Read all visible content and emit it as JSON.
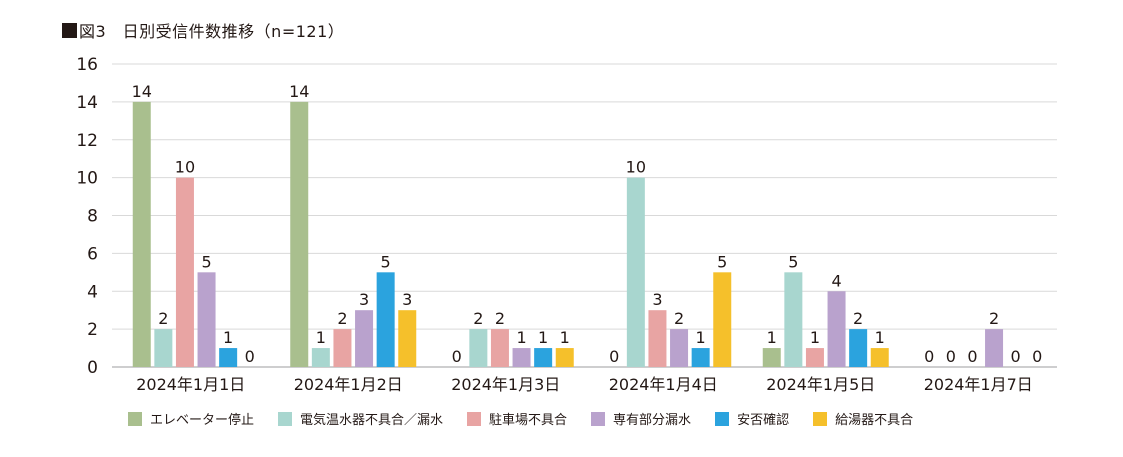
{
  "chart_data": {
    "type": "bar",
    "title_prefix": "■",
    "title": "図3　日別受信件数推移（n=121）",
    "categories": [
      "2024年1月1日",
      "2024年1月2日",
      "2024年1月3日",
      "2024年1月4日",
      "2024年1月5日",
      "2024年1月7日"
    ],
    "series": [
      {
        "name": "エレベーター停止",
        "color": "#a9bf8e",
        "values": [
          14,
          14,
          0,
          0,
          1,
          0
        ]
      },
      {
        "name": "電気温水器不具合／漏水",
        "color": "#a8d6cf",
        "values": [
          2,
          1,
          2,
          10,
          5,
          0
        ]
      },
      {
        "name": "駐車場不具合",
        "color": "#e8a4a3",
        "values": [
          10,
          2,
          2,
          3,
          1,
          0
        ]
      },
      {
        "name": "専有部分漏水",
        "color": "#b9a2cd",
        "values": [
          5,
          3,
          1,
          2,
          4,
          2
        ]
      },
      {
        "name": "安否確認",
        "color": "#2ba3de",
        "values": [
          1,
          5,
          1,
          1,
          2,
          0
        ]
      },
      {
        "name": "給湯器不具合",
        "color": "#f5c02b",
        "values": [
          0,
          3,
          1,
          5,
          1,
          0
        ]
      }
    ],
    "ylim": [
      0,
      16
    ],
    "yticks": [
      0,
      2,
      4,
      6,
      8,
      10,
      12,
      14,
      16
    ],
    "xlabel": "",
    "ylabel": "",
    "grid": true,
    "legend_position": "bottom"
  }
}
